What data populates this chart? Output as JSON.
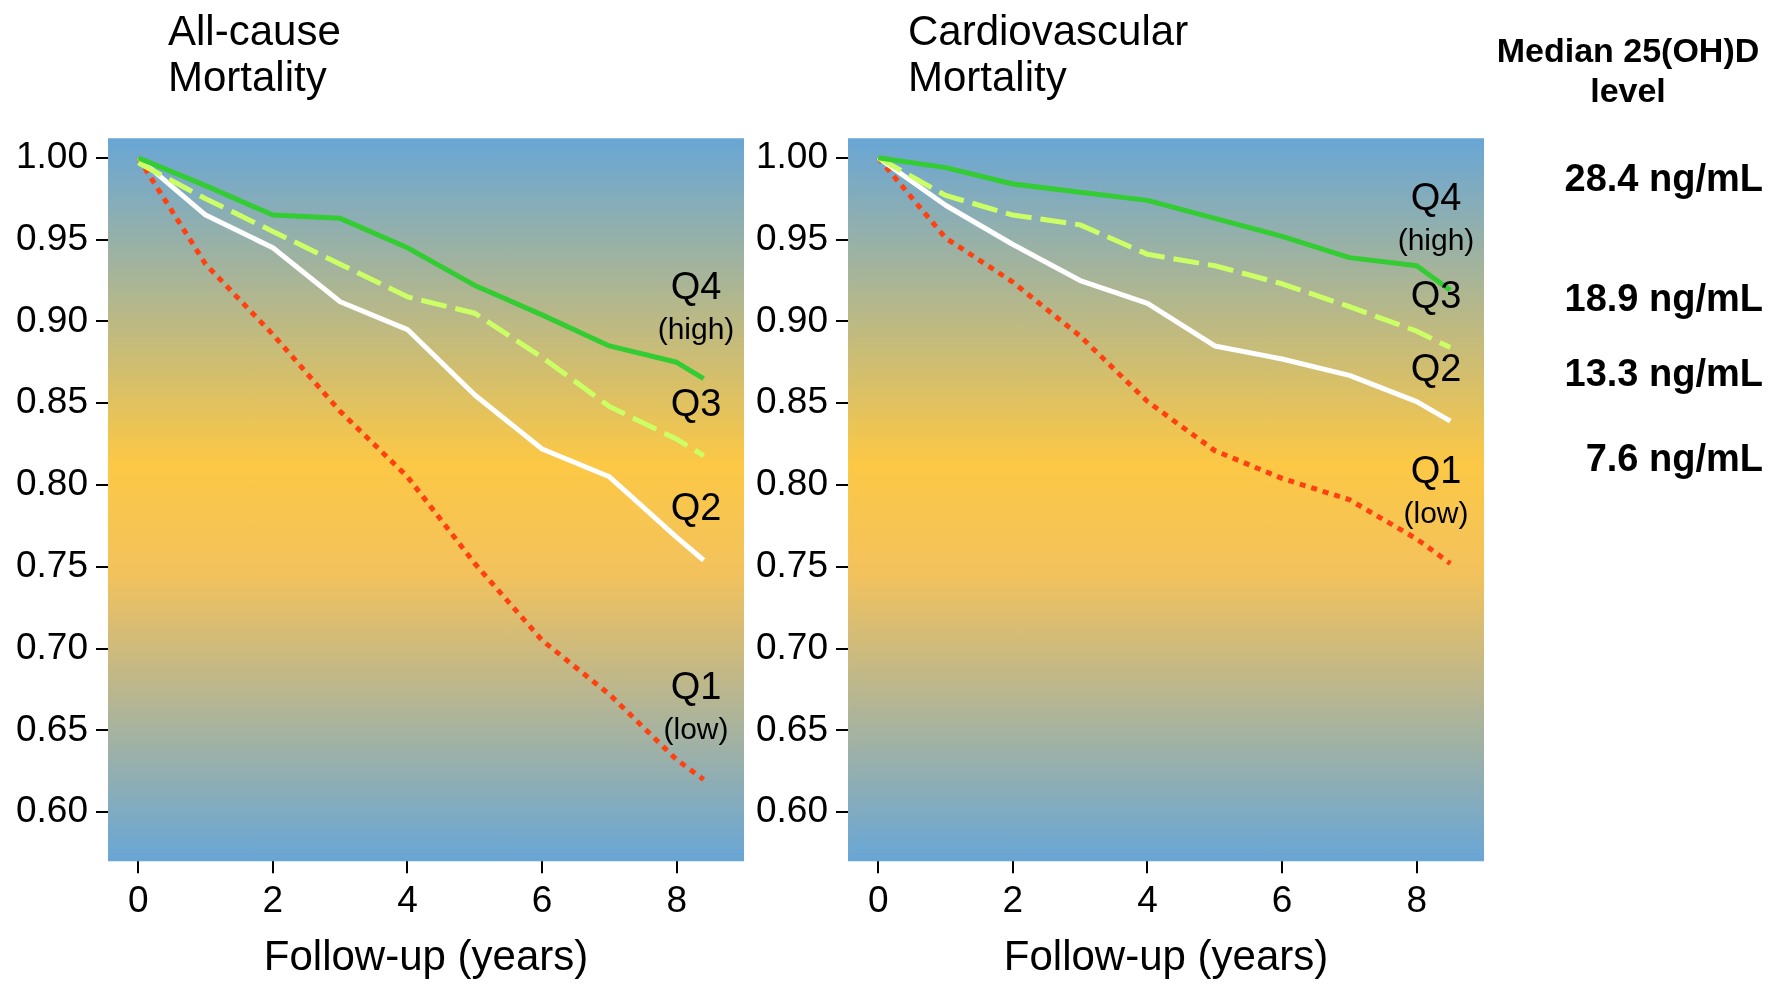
{
  "chart_data": [
    {
      "type": "line",
      "title": "All-cause Mortality",
      "xlabel": "Follow-up (years)",
      "xlim": [
        -0.45,
        9
      ],
      "xticks": [
        0,
        2,
        4,
        6,
        8
      ],
      "ylim": [
        0.57,
        1.012
      ],
      "yticks": [
        {
          "value": 0.6,
          "label": "0.60"
        },
        {
          "value": 0.65,
          "label": "0.65"
        },
        {
          "value": 0.7,
          "label": "0.70"
        },
        {
          "value": 0.75,
          "label": "0.75"
        },
        {
          "value": 0.8,
          "label": "0.80"
        },
        {
          "value": 0.85,
          "label": "0.85"
        },
        {
          "value": 0.9,
          "label": "0.90"
        },
        {
          "value": 0.95,
          "label": "0.95"
        },
        {
          "value": 1,
          "label": "1.00"
        }
      ],
      "grid": false,
      "legend": false,
      "marker": "none",
      "x": [
        0,
        1,
        2,
        3,
        4,
        5,
        6,
        7,
        8,
        8.4
      ],
      "series": [
        {
          "name": "Q4 (high)",
          "color": "#33cc33",
          "line_style": "solid",
          "values": [
            1.0,
            0.983,
            0.965,
            0.963,
            0.945,
            0.922,
            0.904,
            0.885,
            0.875,
            0.865
          ]
        },
        {
          "name": "Q3",
          "color": "#ccff66",
          "line_style": "dashed",
          "values": [
            0.997,
            0.975,
            0.955,
            0.935,
            0.915,
            0.905,
            0.878,
            0.848,
            0.828,
            0.818
          ]
        },
        {
          "name": "Q2",
          "color": "#ffffff",
          "line_style": "solid",
          "values": [
            1.0,
            0.965,
            0.945,
            0.912,
            0.895,
            0.855,
            0.822,
            0.805,
            0.768,
            0.754
          ]
        },
        {
          "name": "Q1 (low)",
          "color": "#ff4010",
          "line_style": "dotted",
          "values": [
            1.0,
            0.935,
            0.892,
            0.845,
            0.805,
            0.752,
            0.705,
            0.672,
            0.632,
            0.62
          ]
        }
      ]
    },
    {
      "type": "line",
      "title": "Cardiovascular Mortality",
      "xlabel": "Follow-up (years)",
      "xlim": [
        -0.45,
        9
      ],
      "xticks": [
        0,
        2,
        4,
        6,
        8
      ],
      "ylim": [
        0.57,
        1.012
      ],
      "yticks": [
        {
          "value": 0.6,
          "label": "0.60"
        },
        {
          "value": 0.65,
          "label": "0.65"
        },
        {
          "value": 0.7,
          "label": "0.70"
        },
        {
          "value": 0.75,
          "label": "0.75"
        },
        {
          "value": 0.8,
          "label": "0.80"
        },
        {
          "value": 0.85,
          "label": "0.85"
        },
        {
          "value": 0.9,
          "label": "0.90"
        },
        {
          "value": 0.95,
          "label": "0.95"
        },
        {
          "value": 1,
          "label": "1.00"
        }
      ],
      "grid": false,
      "legend": false,
      "marker": "none",
      "x": [
        0,
        1,
        2,
        3,
        4,
        5,
        6,
        7,
        8,
        8.5
      ],
      "series": [
        {
          "name": "Q4 (high)",
          "color": "#33cc33",
          "line_style": "solid",
          "values": [
            1.0,
            0.994,
            0.984,
            0.979,
            0.974,
            0.963,
            0.952,
            0.939,
            0.934,
            0.919
          ]
        },
        {
          "name": "Q3",
          "color": "#ccff66",
          "line_style": "dashed",
          "values": [
            1.0,
            0.977,
            0.965,
            0.959,
            0.941,
            0.934,
            0.923,
            0.909,
            0.894,
            0.884
          ]
        },
        {
          "name": "Q2",
          "color": "#ffffff",
          "line_style": "solid",
          "values": [
            1.0,
            0.971,
            0.947,
            0.925,
            0.911,
            0.885,
            0.877,
            0.867,
            0.851,
            0.839
          ]
        },
        {
          "name": "Q1 (low)",
          "color": "#ff4010",
          "line_style": "dotted",
          "values": [
            1.0,
            0.951,
            0.924,
            0.891,
            0.851,
            0.821,
            0.804,
            0.791,
            0.767,
            0.752
          ]
        }
      ],
      "annotations": [
        "Median 25(OH)D level",
        "28.4 ng/mL",
        "18.9 ng/mL",
        "13.3 ng/mL",
        "7.6 ng/mL"
      ]
    }
  ]
}
